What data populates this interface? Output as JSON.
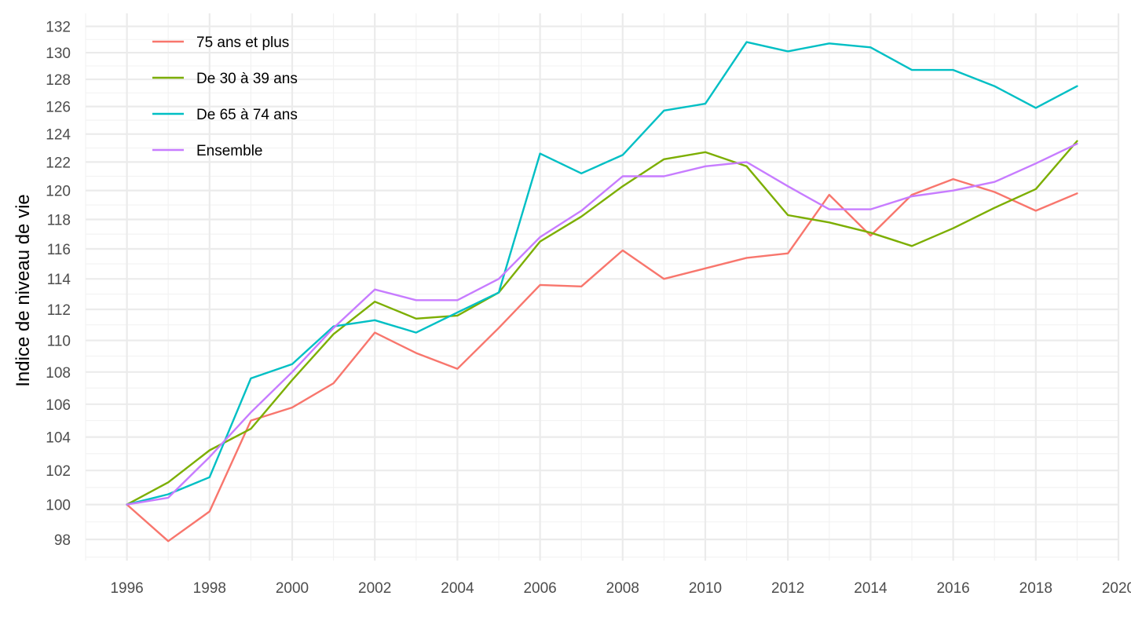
{
  "chart_data": {
    "type": "line",
    "title": "",
    "xlabel": "",
    "ylabel": "Indice de niveau de vie",
    "xlim": [
      1995,
      2020
    ],
    "ylim": [
      96.8,
      133
    ],
    "x_ticks": [
      1996,
      1998,
      2000,
      2002,
      2004,
      2006,
      2008,
      2010,
      2012,
      2014,
      2016,
      2018,
      2020
    ],
    "y_ticks": [
      98,
      100,
      102,
      104,
      106,
      108,
      110,
      112,
      114,
      116,
      118,
      120,
      122,
      124,
      126,
      128,
      130,
      132
    ],
    "grid": true,
    "scale": "log",
    "legend_position": "top-left",
    "x": [
      1996,
      1997,
      1998,
      1999,
      2000,
      2001,
      2002,
      2003,
      2004,
      2005,
      2006,
      2007,
      2008,
      2009,
      2010,
      2011,
      2012,
      2013,
      2014,
      2015,
      2016,
      2017,
      2018,
      2019
    ],
    "series": [
      {
        "name": "75 ans et plus",
        "color": "#F8766D",
        "values": [
          100.0,
          97.9,
          99.6,
          105.0,
          105.8,
          107.3,
          110.5,
          109.2,
          108.2,
          110.8,
          113.6,
          113.5,
          115.9,
          114.0,
          114.7,
          115.4,
          115.7,
          119.7,
          116.9,
          119.7,
          120.8,
          119.9,
          118.6,
          119.8
        ]
      },
      {
        "name": "De 30 à 39 ans",
        "color": "#7CAE00",
        "values": [
          100.0,
          101.3,
          103.2,
          104.5,
          107.5,
          110.4,
          112.5,
          111.4,
          111.6,
          113.1,
          116.5,
          118.2,
          120.3,
          122.2,
          122.7,
          121.7,
          118.3,
          117.8,
          117.1,
          116.2,
          117.4,
          118.8,
          120.1,
          123.5
        ]
      },
      {
        "name": "De 65 à 74 ans",
        "color": "#00BFC4",
        "values": [
          100.0,
          100.6,
          101.6,
          107.6,
          108.5,
          110.9,
          111.3,
          110.5,
          111.8,
          113.1,
          122.6,
          121.2,
          122.5,
          125.7,
          126.2,
          130.8,
          130.1,
          130.7,
          130.4,
          128.7,
          128.7,
          127.5,
          125.9,
          127.5
        ]
      },
      {
        "name": "Ensemble",
        "color": "#C77CFF",
        "values": [
          100.0,
          100.4,
          102.8,
          105.5,
          108.0,
          110.8,
          113.3,
          112.6,
          112.6,
          114.0,
          116.8,
          118.6,
          121.0,
          121.0,
          121.7,
          122.0,
          120.3,
          118.7,
          118.7,
          119.6,
          120.0,
          120.6,
          121.9,
          123.3
        ]
      }
    ]
  }
}
